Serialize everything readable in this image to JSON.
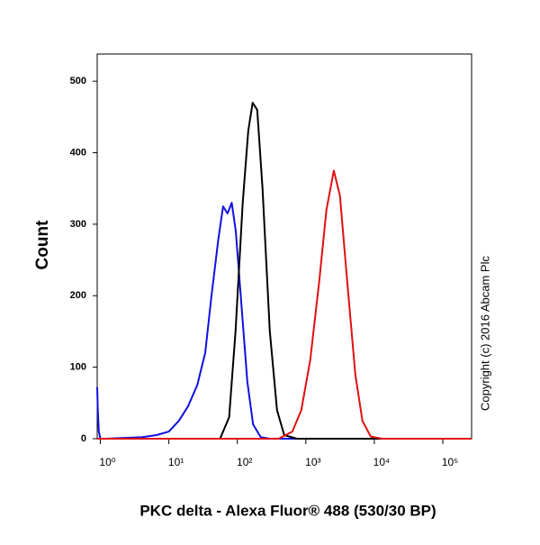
{
  "chart_data": {
    "type": "line",
    "x_label": "PKC delta - Alexa Fluor® 488 (530/30 BP)",
    "y_label": "Count",
    "annotation": "Copyright (c) 2016 Abcam Plc",
    "xscale": "log",
    "xlim": [
      0.9,
      263000
    ],
    "ylim": [
      0,
      538
    ],
    "xticks": [
      {
        "value": 1,
        "label": "10⁰"
      },
      {
        "value": 10,
        "label": "10¹"
      },
      {
        "value": 100,
        "label": "10²"
      },
      {
        "value": 1000,
        "label": "10³"
      },
      {
        "value": 10000,
        "label": "10⁴"
      },
      {
        "value": 100000,
        "label": "10⁵"
      }
    ],
    "yticks": [
      0,
      100,
      200,
      300,
      400,
      500
    ],
    "series": [
      {
        "color": "#1010e0",
        "x": [
          0.9,
          0.92,
          0.95,
          1.0,
          1.2,
          2,
          4,
          6.6,
          10,
          14,
          19,
          26,
          34,
          42,
          53,
          62,
          72,
          83,
          95,
          112,
          140,
          170,
          220,
          300,
          1000,
          10000,
          100000,
          263000
        ],
        "values": [
          72,
          40,
          10,
          0,
          0,
          1,
          2,
          5,
          10,
          25,
          45,
          75,
          120,
          200,
          280,
          325,
          315,
          330,
          290,
          200,
          80,
          20,
          2,
          0,
          0,
          0,
          0,
          0
        ]
      },
      {
        "color": "#000000",
        "x": [
          0.9,
          40,
          56,
          76,
          94,
          120,
          144,
          167,
          195,
          233,
          298,
          380,
          483,
          740,
          10000,
          263000
        ],
        "values": [
          0,
          0,
          0,
          30,
          150,
          330,
          430,
          470,
          460,
          350,
          150,
          40,
          5,
          0,
          0,
          0
        ]
      },
      {
        "color": "#e01010",
        "x": [
          0.9,
          400,
          635,
          860,
          1160,
          1570,
          2000,
          2560,
          3150,
          4020,
          5270,
          6700,
          8860,
          13000,
          263000
        ],
        "values": [
          0,
          0,
          10,
          40,
          110,
          220,
          320,
          375,
          340,
          220,
          90,
          25,
          3,
          0,
          0
        ]
      }
    ]
  }
}
